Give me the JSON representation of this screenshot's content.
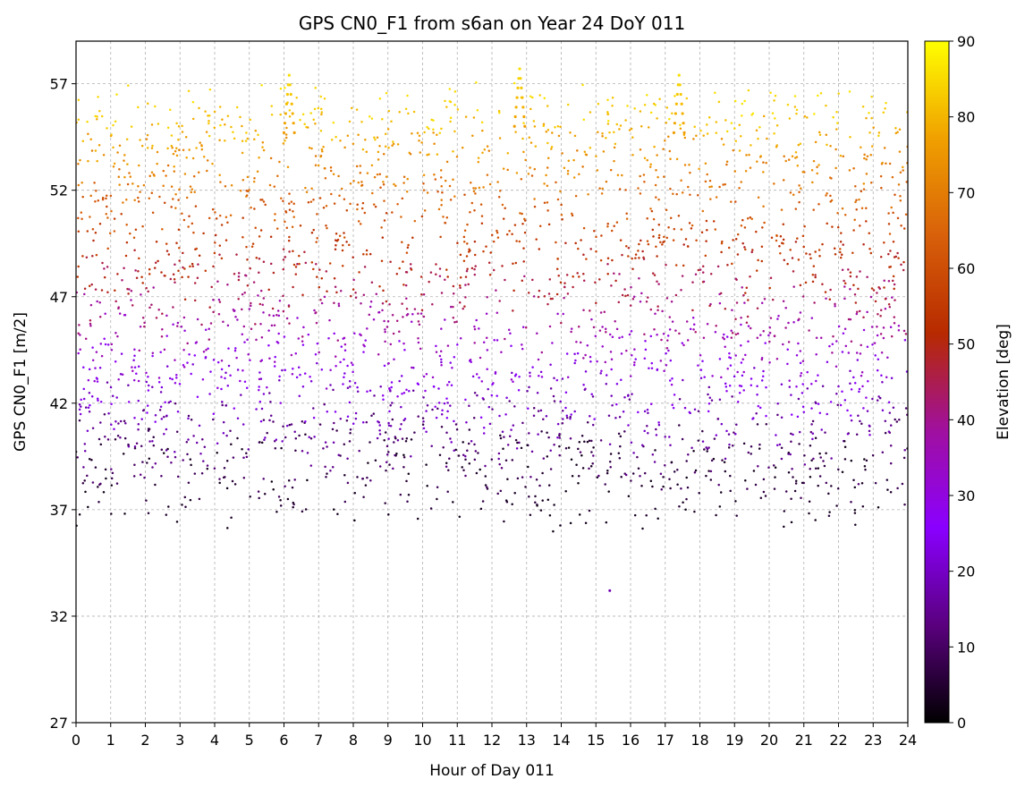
{
  "chart_data": {
    "type": "scatter",
    "title": "GPS CN0_F1 from s6an on Year 24 DoY 011",
    "xlabel": "Hour of Day 011",
    "ylabel": "GPS CN0_F1 [m/2]",
    "xlim": [
      0,
      24
    ],
    "ylim": [
      27,
      59
    ],
    "xticks": [
      0,
      1,
      2,
      3,
      4,
      5,
      6,
      7,
      8,
      9,
      10,
      11,
      12,
      13,
      14,
      15,
      16,
      17,
      18,
      19,
      20,
      21,
      22,
      23,
      24
    ],
    "yticks": [
      27,
      32,
      37,
      42,
      47,
      52,
      57
    ],
    "grid": true,
    "colorbar": {
      "label": "Elevation [deg]",
      "range": [
        0,
        90
      ],
      "ticks": [
        0,
        10,
        20,
        30,
        40,
        50,
        60,
        70,
        80,
        90
      ],
      "colormap": "gnuplot",
      "color_stops": [
        "#000000",
        "#5a007e",
        "#8a00ff",
        "#a0109f",
        "#b72a00",
        "#d8600a",
        "#f0a000",
        "#ffff00"
      ]
    },
    "series_summary": {
      "value_range_at_low_elevation": [
        34,
        43
      ],
      "value_range_at_high_elevation": [
        52,
        57.8
      ],
      "peak_values": [
        {
          "x": 6.15,
          "y": 57.4
        },
        {
          "x": 12.8,
          "y": 57.7
        },
        {
          "x": 17.4,
          "y": 57.4
        }
      ],
      "outlier_minimum": {
        "x": 15.4,
        "y": 33.2
      }
    }
  }
}
